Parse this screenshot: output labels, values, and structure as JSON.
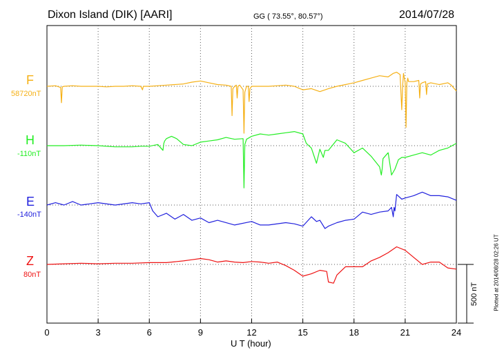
{
  "header": {
    "station": "Dixon Island (DIK)  [AARI]",
    "coords": "GG ( 73.55°,  80.57°)",
    "date": "2014/07/28"
  },
  "plotted_note": "Plotted at 2014/08/28 02:26 UT",
  "chart_data": {
    "type": "line",
    "xlabel": "U T (hour)",
    "xlim": [
      0,
      24
    ],
    "xticks": [
      0,
      3,
      6,
      9,
      12,
      15,
      18,
      21,
      24
    ],
    "grid": true,
    "scale_bar": {
      "value": 500,
      "label": "500 nT"
    },
    "series": [
      {
        "name": "F",
        "baseline_label": "58720nT",
        "color": "#f5b015",
        "x": [
          0,
          0.5,
          0.8,
          0.85,
          0.9,
          1,
          1.5,
          2,
          2.5,
          3,
          3.5,
          4,
          4.5,
          5,
          5.5,
          5.6,
          5.65,
          5.7,
          6,
          6.5,
          7,
          7.5,
          8,
          8.5,
          9,
          9.5,
          10,
          10.5,
          10.8,
          10.85,
          10.9,
          11,
          11.1,
          11.15,
          11.2,
          11.3,
          11.5,
          11.55,
          11.6,
          11.7,
          11.8,
          11.85,
          11.9,
          12,
          12.5,
          13,
          13.5,
          14,
          14.5,
          15,
          15.5,
          16,
          16.5,
          17,
          17.5,
          18,
          18.5,
          19,
          19.5,
          20,
          20.3,
          20.5,
          20.7,
          20.8,
          20.85,
          20.9,
          21,
          21.05,
          21.1,
          21.15,
          21.2,
          21.5,
          21.8,
          21.85,
          21.9,
          22,
          22.2,
          22.25,
          22.3,
          22.5,
          23,
          23.5,
          23.7,
          24
        ],
        "y": [
          0,
          5,
          -10,
          -140,
          -5,
          0,
          5,
          0,
          0,
          0,
          -5,
          0,
          0,
          5,
          0,
          -30,
          0,
          0,
          0,
          5,
          10,
          15,
          20,
          35,
          45,
          30,
          15,
          10,
          0,
          -250,
          -20,
          0,
          10,
          -100,
          0,
          10,
          -30,
          -400,
          -50,
          0,
          0,
          -130,
          -20,
          0,
          0,
          0,
          5,
          10,
          0,
          -30,
          -20,
          -45,
          -20,
          0,
          15,
          30,
          50,
          70,
          90,
          80,
          110,
          120,
          100,
          -200,
          0,
          110,
          30,
          -350,
          30,
          70,
          40,
          40,
          50,
          -100,
          20,
          30,
          40,
          -70,
          20,
          30,
          15,
          30,
          10,
          -40
        ]
      },
      {
        "name": "H",
        "baseline_label": "-110nT",
        "color": "#22ee22",
        "x": [
          0,
          1,
          2,
          3,
          4,
          5,
          5.5,
          6,
          6.5,
          6.8,
          6.85,
          6.9,
          7,
          7.3,
          7.6,
          8,
          8.5,
          9,
          9.5,
          10,
          10.5,
          11,
          11.5,
          11.55,
          11.6,
          11.7,
          12,
          12.5,
          13,
          13.5,
          14,
          14.5,
          15,
          15.2,
          15.5,
          15.8,
          16,
          16.2,
          16.3,
          16.5,
          17,
          17.5,
          18,
          18.5,
          19,
          19.5,
          19.6,
          19.65,
          19.7,
          20,
          20.2,
          20.4,
          20.6,
          20.8,
          21,
          21.5,
          22,
          22.5,
          23,
          23.5,
          24
        ],
        "y": [
          0,
          0,
          5,
          0,
          -10,
          -10,
          -5,
          -5,
          10,
          -40,
          20,
          40,
          60,
          80,
          60,
          10,
          0,
          30,
          40,
          50,
          70,
          55,
          60,
          -360,
          10,
          55,
          80,
          100,
          90,
          100,
          110,
          120,
          100,
          20,
          -20,
          -150,
          -30,
          -100,
          -40,
          -40,
          50,
          20,
          -60,
          -20,
          -90,
          -180,
          -250,
          -200,
          -110,
          -60,
          -250,
          -200,
          -120,
          -100,
          -100,
          -80,
          -60,
          -80,
          -40,
          -20,
          20
        ]
      },
      {
        "name": "E",
        "baseline_label": "-140nT",
        "color": "#2020dd",
        "x": [
          0,
          0.5,
          1,
          1.5,
          2,
          3,
          4,
          5,
          5.5,
          6,
          6.2,
          6.5,
          7,
          7.5,
          8,
          8.5,
          9,
          9.5,
          10,
          11,
          12,
          12.5,
          13,
          14,
          14.5,
          15,
          15.5,
          15.8,
          16,
          16.3,
          16.5,
          17,
          17.5,
          18,
          18.5,
          19,
          19.5,
          20,
          20.2,
          20.3,
          20.35,
          20.4,
          20.5,
          20.8,
          21,
          21.5,
          22,
          22.5,
          23,
          23.5,
          24
        ],
        "y": [
          0,
          20,
          0,
          30,
          0,
          20,
          0,
          20,
          10,
          20,
          -50,
          -100,
          -70,
          -120,
          -80,
          -130,
          -110,
          -150,
          -130,
          -170,
          -140,
          -170,
          -170,
          -150,
          -160,
          -180,
          -100,
          -140,
          -130,
          -200,
          -180,
          -150,
          -130,
          -120,
          -60,
          -80,
          -60,
          -50,
          -20,
          -100,
          -20,
          -50,
          90,
          50,
          60,
          80,
          110,
          80,
          80,
          70,
          40
        ]
      },
      {
        "name": "Z",
        "baseline_label": "80nT",
        "color": "#ee1111",
        "x": [
          0,
          1,
          2,
          3,
          4,
          5,
          6,
          7,
          8,
          8.5,
          9,
          9.5,
          10,
          10.5,
          11,
          11.5,
          12,
          12.5,
          13,
          13.5,
          14,
          14.5,
          15,
          15.5,
          16,
          16.4,
          16.5,
          16.8,
          17,
          17.5,
          18,
          18.5,
          19,
          19.5,
          20,
          20.5,
          21,
          21.5,
          22,
          22.5,
          23,
          23.5,
          24
        ],
        "y": [
          0,
          5,
          10,
          5,
          10,
          10,
          15,
          15,
          30,
          40,
          50,
          40,
          20,
          30,
          20,
          15,
          25,
          20,
          10,
          20,
          -10,
          -50,
          -100,
          -80,
          -50,
          -60,
          -150,
          -160,
          -90,
          -20,
          -20,
          -20,
          30,
          60,
          100,
          150,
          120,
          60,
          0,
          20,
          20,
          -30,
          -40
        ]
      }
    ]
  }
}
